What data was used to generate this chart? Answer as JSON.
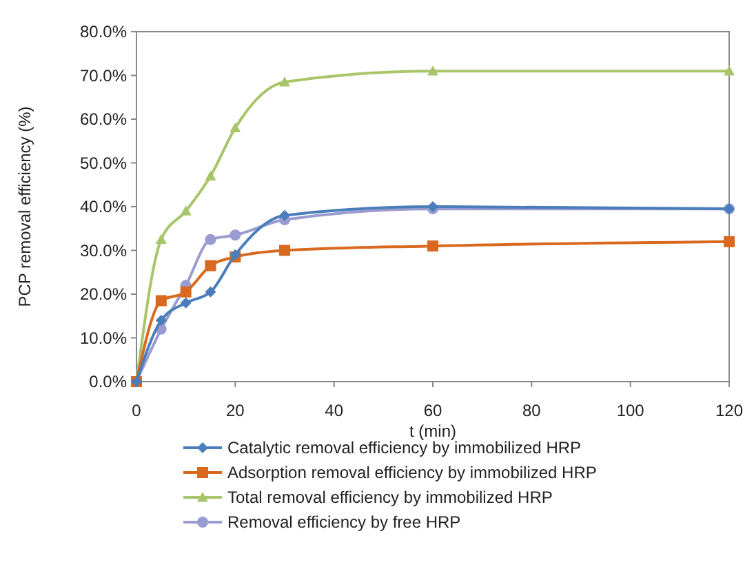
{
  "chart_data": {
    "type": "line",
    "xlabel": "t (min)",
    "ylabel": "PCP removal efficiency (%)",
    "x": [
      0,
      5,
      10,
      15,
      20,
      30,
      60,
      120
    ],
    "xlim": [
      0,
      120
    ],
    "xticks": [
      0,
      20,
      40,
      60,
      80,
      100,
      120
    ],
    "ylim": [
      0,
      80
    ],
    "yticks": [
      {
        "value": 0,
        "label": "0.0%"
      },
      {
        "value": 10,
        "label": "10.0%"
      },
      {
        "value": 20,
        "label": "20.0%"
      },
      {
        "value": 30,
        "label": "30.0%"
      },
      {
        "value": 40,
        "label": "40.0%"
      },
      {
        "value": 50,
        "label": "50.0%"
      },
      {
        "value": 60,
        "label": "60.0%"
      },
      {
        "value": 70,
        "label": "70.0%"
      },
      {
        "value": 80,
        "label": "80.0%"
      }
    ],
    "grid": false,
    "legend": "bottom",
    "series": [
      {
        "name": "Catalytic removal efficiency by immobilized HRP",
        "color": "#4a7ebb",
        "marker": "diamond",
        "values": [
          0,
          14,
          18,
          20.5,
          29,
          38,
          40,
          39.5
        ]
      },
      {
        "name": "Adsorption removal efficiency by immobilized HRP",
        "color": "#d8691f",
        "marker": "square",
        "values": [
          0,
          18.5,
          20.5,
          26.5,
          28.5,
          30,
          31,
          32
        ]
      },
      {
        "name": "Total removal efficiency by immobilized HRP",
        "color": "#a8c56a",
        "marker": "triangle",
        "values": [
          0,
          32.5,
          39,
          47,
          58,
          68.5,
          71,
          71
        ]
      },
      {
        "name": "Removal efficiency by free HRP",
        "color": "#9a9bd0",
        "marker": "circle",
        "values": [
          0,
          12,
          22,
          32.5,
          33.5,
          37,
          39.5,
          39.5
        ]
      }
    ]
  }
}
